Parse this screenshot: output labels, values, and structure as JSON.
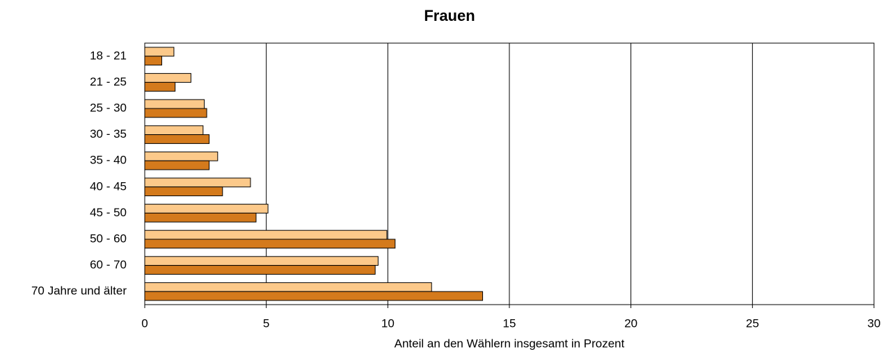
{
  "chart_data": {
    "type": "bar",
    "orientation": "horizontal",
    "title": "Frauen",
    "x_label": "Anteil an den Wählern insgesamt in Prozent",
    "categories": [
      "18 - 21",
      "21 - 25",
      "25 - 30",
      "30 - 35",
      "35 - 40",
      "40 - 45",
      "45 - 50",
      "50 - 60",
      "60 - 70",
      "70 Jahre und älter"
    ],
    "series": [
      {
        "color": "#fcc98a",
        "values": [
          1.2,
          1.9,
          2.45,
          2.4,
          3.0,
          4.35,
          5.07,
          9.96,
          9.6,
          11.8
        ]
      },
      {
        "color": "#d47a1c",
        "values": [
          0.7,
          1.25,
          2.55,
          2.65,
          2.65,
          3.2,
          4.58,
          10.3,
          9.48,
          13.9
        ]
      }
    ],
    "xlim": [
      0,
      30
    ],
    "xticks": [
      0,
      5,
      10,
      15,
      20,
      25,
      30
    ],
    "grid": true
  }
}
